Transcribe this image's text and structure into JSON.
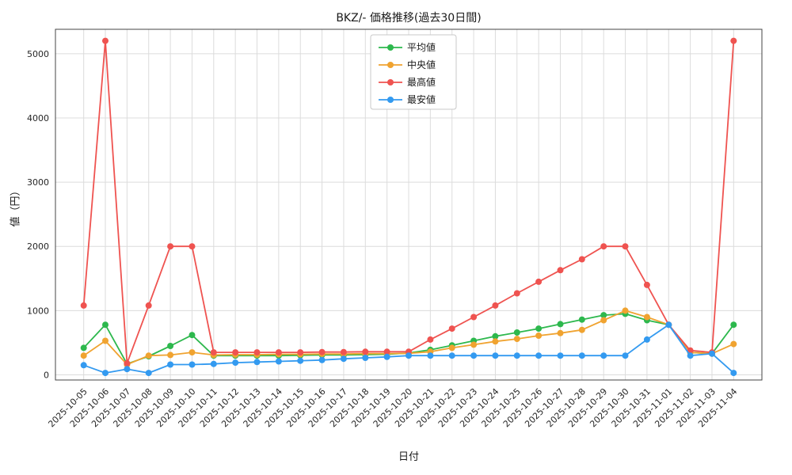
{
  "chart_data": {
    "type": "line",
    "title": "BKZ/- 価格推移(過去30日間)",
    "xlabel": "日付",
    "ylabel": "値（円）",
    "grid": true,
    "legend_position": "top-center",
    "marker": "circle",
    "yticks": [
      0,
      1000,
      2000,
      3000,
      4000,
      5000
    ],
    "ylim": [
      -80,
      5380
    ],
    "categories": [
      "2025-10-05",
      "2025-10-06",
      "2025-10-07",
      "2025-10-08",
      "2025-10-09",
      "2025-10-10",
      "2025-10-11",
      "2025-10-12",
      "2025-10-13",
      "2025-10-14",
      "2025-10-15",
      "2025-10-16",
      "2025-10-17",
      "2025-10-18",
      "2025-10-19",
      "2025-10-20",
      "2025-10-21",
      "2025-10-22",
      "2025-10-23",
      "2025-10-24",
      "2025-10-25",
      "2025-10-26",
      "2025-10-27",
      "2025-10-28",
      "2025-10-29",
      "2025-10-30",
      "2025-10-31",
      "2025-11-01",
      "2025-11-02",
      "2025-11-03",
      "2025-11-04"
    ],
    "series": [
      {
        "key": "average",
        "name": "平均値",
        "color": "#2db84d",
        "values": [
          420,
          780,
          170,
          290,
          450,
          620,
          300,
          300,
          300,
          300,
          305,
          310,
          310,
          315,
          320,
          340,
          390,
          460,
          530,
          600,
          660,
          720,
          790,
          860,
          930,
          950,
          850,
          780,
          350,
          330,
          780
        ]
      },
      {
        "key": "median",
        "name": "中央値",
        "color": "#f0a330",
        "values": [
          300,
          530,
          160,
          300,
          310,
          350,
          310,
          315,
          315,
          320,
          320,
          325,
          325,
          330,
          330,
          335,
          360,
          420,
          470,
          520,
          560,
          610,
          650,
          700,
          850,
          1000,
          900,
          780,
          350,
          330,
          480
        ]
      },
      {
        "key": "max",
        "name": "最高値",
        "color": "#ef5350",
        "values": [
          1080,
          5200,
          180,
          1080,
          2000,
          2000,
          350,
          350,
          350,
          350,
          350,
          355,
          355,
          360,
          360,
          360,
          550,
          720,
          900,
          1080,
          1270,
          1450,
          1630,
          1800,
          2000,
          2000,
          1400,
          780,
          380,
          350,
          5200
        ]
      },
      {
        "key": "min",
        "name": "最安値",
        "color": "#339af0",
        "values": [
          150,
          30,
          90,
          30,
          160,
          160,
          170,
          190,
          200,
          210,
          220,
          230,
          250,
          265,
          280,
          300,
          300,
          300,
          300,
          300,
          300,
          300,
          300,
          300,
          300,
          300,
          550,
          780,
          300,
          330,
          30
        ]
      }
    ]
  }
}
